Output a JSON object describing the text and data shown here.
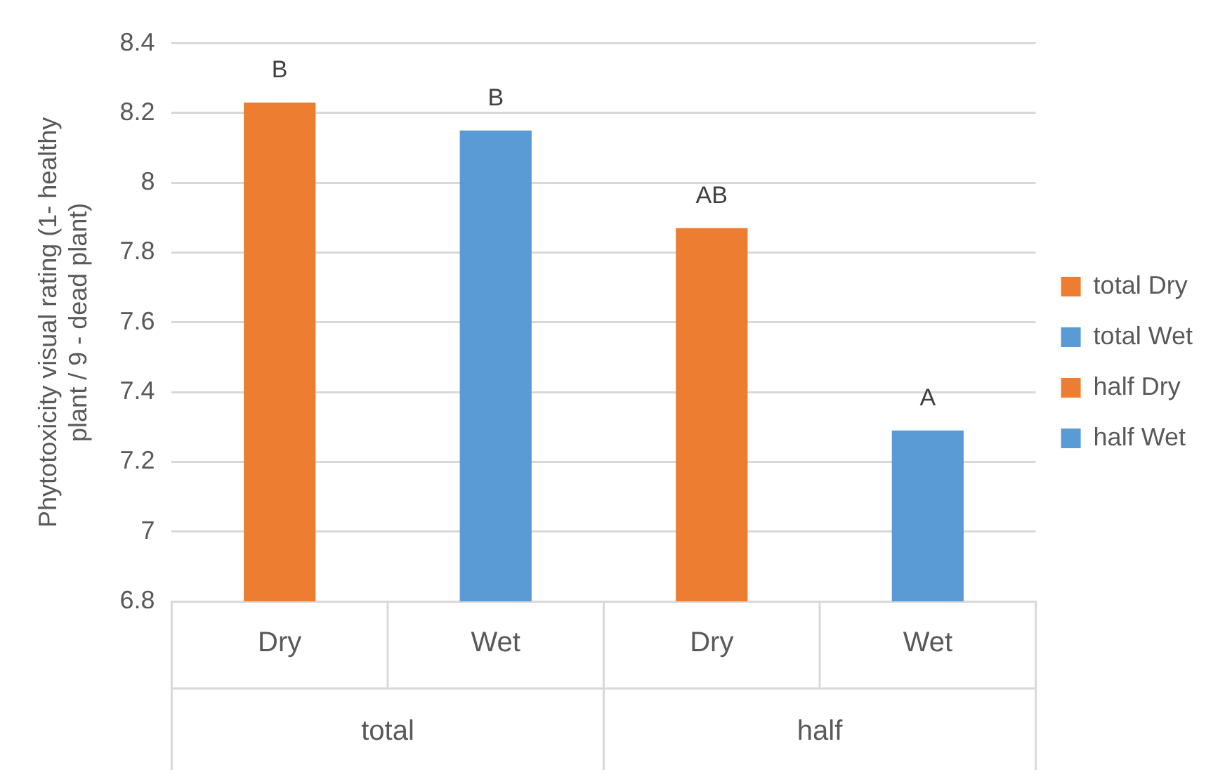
{
  "chart_data": {
    "type": "bar",
    "ylabel": "Phytotoxicity visual rating (1- healthy plant / 9 - dead plant)",
    "categories": [
      "Dry",
      "Wet",
      "Dry",
      "Wet"
    ],
    "series": [
      {
        "name": "total Dry",
        "color": "#ed7d31",
        "values": [
          8.23,
          null,
          null,
          null
        ],
        "value_labels": [
          "B",
          null,
          null,
          null
        ]
      },
      {
        "name": "total Wet",
        "color": "#5b9bd5",
        "values": [
          null,
          8.15,
          null,
          null
        ],
        "value_labels": [
          null,
          "B",
          null,
          null
        ]
      },
      {
        "name": "half Dry",
        "color": "#ed7d31",
        "values": [
          null,
          null,
          7.87,
          null
        ],
        "value_labels": [
          null,
          null,
          "AB",
          null
        ]
      },
      {
        "name": "half Wet",
        "color": "#5b9bd5",
        "values": [
          null,
          null,
          null,
          7.29
        ],
        "value_labels": [
          null,
          null,
          null,
          "A"
        ]
      }
    ],
    "annotations": [
      "total",
      "half"
    ],
    "ylim": [
      6.8,
      8.4
    ],
    "yticks": [
      6.8,
      7,
      7.2,
      7.4,
      7.6,
      7.8,
      8,
      8.2,
      8.4
    ],
    "grid": "y",
    "legend": "right"
  }
}
